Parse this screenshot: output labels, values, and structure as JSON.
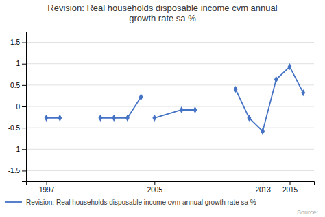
{
  "chart_data": {
    "type": "line",
    "title": "Revision: Real households disposable income cvm annual\ngrowth rate sa %",
    "x": [
      1997,
      1998,
      null,
      2001,
      2002,
      2003,
      2004,
      null,
      2005,
      2007,
      2008,
      null,
      2011,
      2012,
      2013,
      2014,
      2015,
      2016
    ],
    "series": [
      {
        "name": "Revision: Real households disposable income cvm annual growth rate sa %",
        "color": "#4472c4",
        "marker": "diamond",
        "values": [
          -0.27,
          -0.27,
          null,
          -0.27,
          -0.27,
          -0.27,
          0.22,
          null,
          -0.27,
          -0.08,
          -0.08,
          null,
          0.4,
          -0.27,
          -0.58,
          0.63,
          0.93,
          0.32
        ]
      }
    ],
    "xlim": [
      1995.5,
      2016.8
    ],
    "xticks": [
      1997,
      2005,
      2013,
      2015
    ],
    "ylim": [
      -1.75,
      1.75
    ],
    "yticks": [
      -1.5,
      -1.0,
      -0.5,
      0,
      0.5,
      1.0,
      1.5
    ],
    "grid": true,
    "legend": "lower left",
    "annotations": [
      "Source:"
    ]
  }
}
